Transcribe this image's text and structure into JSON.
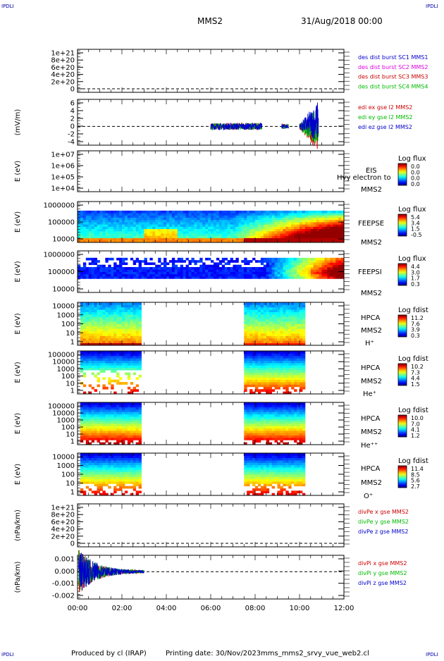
{
  "header": {
    "spacecraft": "MMS2",
    "date": "31/Aug/2018 00:00",
    "corner_left": "IPDLI",
    "corner_right": "IPDLI",
    "corner_bottom_left": "IPDLI",
    "corner_bottom_right": "IPDLI"
  },
  "footer": {
    "produced_by": "Produced by cl (IRAP)",
    "printing_date": "Printing date: 30/Nov/2023",
    "filename": "mms_mms2_srvy_vue_web2.cl"
  },
  "colors": {
    "mms1": "#0000cc",
    "mms2": "#dd00dd",
    "mms3": "#cc0000",
    "mms4": "#00bb00",
    "x": "#cc0000",
    "y": "#00bb00",
    "z": "#0000cc"
  },
  "chart_data": {
    "type": "line",
    "x_axis": {
      "range": [
        "00:00",
        "12:00"
      ],
      "tick_labels": [
        "00:00",
        "02:00",
        "04:00",
        "06:00",
        "08:00",
        "10:00",
        "12:00"
      ]
    },
    "panels": [
      {
        "kind": "line",
        "ylabel": "",
        "tick_labels": [
          "1e+21",
          "8e+20",
          "6e+20",
          "4e+20",
          "2e+20",
          "0"
        ],
        "legend": [
          {
            "text": "des dist burst SC1 MMS1",
            "color": "#0000cc"
          },
          {
            "text": "des dist burst SC2 MMS2",
            "color": "#dd00dd"
          },
          {
            "text": "des dist burst SC3 MMS3",
            "color": "#cc0000"
          },
          {
            "text": "des dist burst SC4 MMS4",
            "color": "#00bb00"
          }
        ]
      },
      {
        "kind": "line",
        "ylabel": "(mV/m)",
        "tick_labels": [
          "6",
          "4",
          "2",
          "0",
          "-2",
          "-4"
        ],
        "ylim": [
          -4.5,
          6.5
        ],
        "legend": [
          {
            "text": "edi ex gse l2 MMS2",
            "color": "#cc0000"
          },
          {
            "text": "edi ey gse l2 MMS2",
            "color": "#00bb00"
          },
          {
            "text": "edi ez gse l2 MMS2",
            "color": "#0000cc"
          }
        ]
      },
      {
        "kind": "spectrogram",
        "ylabel": "E (eV)",
        "tick_labels": [
          "1e+07",
          "1e+06",
          "1e+05",
          "1e+04"
        ],
        "labels": [
          "EIS",
          "Hvy electron to",
          "MMS2"
        ],
        "colorbar": {
          "title": "Log flux",
          "ticks": [
            "0.0",
            "0.0",
            "0.0",
            "0.0"
          ]
        }
      },
      {
        "kind": "spectrogram",
        "ylabel": "E (eV)",
        "tick_labels": [
          "1000000",
          "100000",
          "10000"
        ],
        "labels": [
          "FEEPSE",
          "MMS2"
        ],
        "colorbar": {
          "title": "Log flux",
          "ticks": [
            "5.4",
            "3.4",
            "1.5",
            "-0.5"
          ]
        }
      },
      {
        "kind": "spectrogram",
        "ylabel": "E (eV)",
        "tick_labels": [
          "1000000",
          "100000",
          "10000"
        ],
        "labels": [
          "FEEPSI",
          "MMS2"
        ],
        "colorbar": {
          "title": "Log flux",
          "ticks": [
            "4.4",
            "3.0",
            "1.7",
            "0.3"
          ]
        }
      },
      {
        "kind": "spectrogram",
        "ylabel": "E (eV)",
        "tick_labels": [
          "10000",
          "1000",
          "100",
          "10",
          "1"
        ],
        "labels": [
          "HPCA",
          "MMS2",
          "H⁺"
        ],
        "colorbar": {
          "title": "Log fdist",
          "ticks": [
            "11.2",
            "7.6",
            "3.9",
            "0.3"
          ]
        }
      },
      {
        "kind": "spectrogram",
        "ylabel": "E (eV)",
        "tick_labels": [
          "100000",
          "10000",
          "1000",
          "100",
          "10",
          "1"
        ],
        "labels": [
          "HPCA",
          "MMS2",
          "He⁺"
        ],
        "colorbar": {
          "title": "Log fdist",
          "ticks": [
            "10.2",
            "7.3",
            "4.4",
            "1.5"
          ]
        }
      },
      {
        "kind": "spectrogram",
        "ylabel": "E (eV)",
        "tick_labels": [
          "100000",
          "10000",
          "1000",
          "100",
          "10",
          "1"
        ],
        "labels": [
          "HPCA",
          "MMS2",
          "He⁺⁺"
        ],
        "colorbar": {
          "title": "Log fdist",
          "ticks": [
            "10.0",
            "7.0",
            "4.1",
            "1.2"
          ]
        }
      },
      {
        "kind": "spectrogram",
        "ylabel": "E (eV)",
        "tick_labels": [
          "10000",
          "1000",
          "100",
          "10",
          "1"
        ],
        "labels": [
          "HPCA",
          "MMS2",
          "O⁺"
        ],
        "colorbar": {
          "title": "Log fdist",
          "ticks": [
            "11.4",
            "8.5",
            "5.6",
            "2.7"
          ]
        }
      },
      {
        "kind": "line",
        "ylabel": "(nPa/km)",
        "tick_labels": [
          "1e+21",
          "8e+20",
          "6e+20",
          "4e+20",
          "2e+20",
          "0"
        ],
        "legend": [
          {
            "text": "divPe x gse MMS2",
            "color": "#cc0000"
          },
          {
            "text": "divPe y gse MMS2",
            "color": "#00bb00"
          },
          {
            "text": "divPe z gse MMS2",
            "color": "#0000cc"
          }
        ]
      },
      {
        "kind": "line",
        "ylabel": "(nPa/km)",
        "tick_labels": [
          "0.001",
          "0.000",
          "-0.001",
          "-0.002"
        ],
        "ylim": [
          -0.0025,
          0.0015
        ],
        "legend": [
          {
            "text": "divPi x gse MMS2",
            "color": "#cc0000"
          },
          {
            "text": "divPi y gse MMS2",
            "color": "#00bb00"
          },
          {
            "text": "divPi z gse MMS2",
            "color": "#0000cc"
          }
        ]
      }
    ]
  }
}
